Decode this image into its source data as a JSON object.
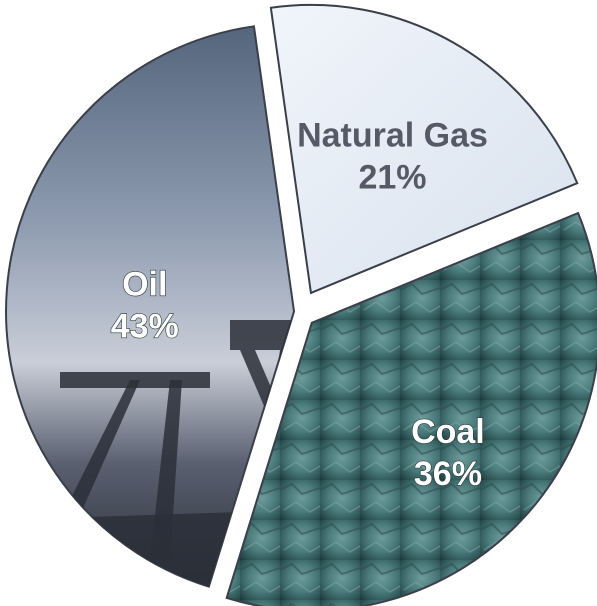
{
  "chart_data": {
    "type": "pie",
    "title": "",
    "slices": [
      {
        "label": "Natural Gas",
        "value": 21,
        "display": "21%",
        "color": "#e6edf5"
      },
      {
        "label": "Coal",
        "value": 36,
        "display": "36%",
        "color": "#3f6e6e"
      },
      {
        "label": "Oil",
        "value": 43,
        "display": "43%",
        "color": "#4a5566"
      }
    ],
    "exploded": true,
    "legend": "none",
    "label_position": "inside"
  }
}
